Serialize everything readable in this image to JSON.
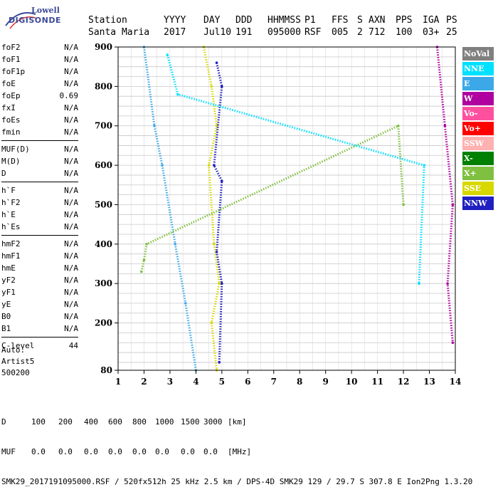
{
  "logo": {
    "line1": "Lowell",
    "line2": "DIGISONDE"
  },
  "header": {
    "labels": [
      "Station",
      "YYYY",
      "DAY",
      "DDD",
      "HHMMSS",
      "P1",
      "FFS",
      "S",
      "AXN",
      "PPS",
      "IGA",
      "PS"
    ],
    "values": [
      "Santa Maria",
      "2017",
      "Jul10",
      "191",
      "095000",
      "RSF",
      "005",
      "2",
      "712",
      "100",
      "03+",
      "25"
    ]
  },
  "params_groups": [
    [
      {
        "name": "foF2",
        "value": "N/A"
      },
      {
        "name": "foF1",
        "value": "N/A"
      },
      {
        "name": "foF1p",
        "value": "N/A"
      },
      {
        "name": "foE",
        "value": "N/A"
      },
      {
        "name": "foEp",
        "value": "0.69"
      },
      {
        "name": "fxI",
        "value": "N/A"
      },
      {
        "name": "foEs",
        "value": "N/A"
      },
      {
        "name": "fmin",
        "value": "N/A"
      }
    ],
    [
      {
        "name": "MUF(D)",
        "value": "N/A"
      },
      {
        "name": "M(D)",
        "value": "N/A"
      },
      {
        "name": "D",
        "value": "N/A"
      }
    ],
    [
      {
        "name": "h`F",
        "value": "N/A"
      },
      {
        "name": "h`F2",
        "value": "N/A"
      },
      {
        "name": "h`E",
        "value": "N/A"
      },
      {
        "name": "h`Es",
        "value": "N/A"
      }
    ],
    [
      {
        "name": "hmF2",
        "value": "N/A"
      },
      {
        "name": "hmF1",
        "value": "N/A"
      },
      {
        "name": "hmE",
        "value": "N/A"
      },
      {
        "name": "yF2",
        "value": "N/A"
      },
      {
        "name": "yF1",
        "value": "N/A"
      },
      {
        "name": "yE",
        "value": "N/A"
      },
      {
        "name": "B0",
        "value": "N/A"
      },
      {
        "name": "B1",
        "value": "N/A"
      }
    ],
    [
      {
        "name": "C-level",
        "value": "44"
      }
    ]
  ],
  "auto": {
    "line1": "Auto:",
    "line2": "Artist5",
    "line3": "500200"
  },
  "footer": {
    "d_label": "D",
    "d_values": [
      "100",
      "200",
      "400",
      "600",
      "800",
      "1000",
      "1500",
      "3000"
    ],
    "d_unit": "[km]",
    "muf_label": "MUF",
    "muf_values": [
      "0.0",
      "0.0",
      "0.0",
      "0.0",
      "0.0",
      "0.0",
      "0.0",
      "0.0"
    ],
    "muf_unit": "[MHz]",
    "info": "SMK29_2017191095000.RSF / 520fx512h 25 kHz 2.5 km / DPS-4D SMK29 129 / 29.7 S 307.8 E Ion2Png 1.3.20"
  },
  "legend": [
    {
      "label": "NoVal",
      "color": "#808080"
    },
    {
      "label": "NNE",
      "color": "#00e0ff"
    },
    {
      "label": "E",
      "color": "#3ca8e8"
    },
    {
      "label": "W",
      "color": "#b000a0"
    },
    {
      "label": "Vo-",
      "color": "#ff50a0"
    },
    {
      "label": "Vo+",
      "color": "#ff0000"
    },
    {
      "label": "SSW",
      "color": "#ffb0b0"
    },
    {
      "label": "X-",
      "color": "#008000"
    },
    {
      "label": "X+",
      "color": "#80c040"
    },
    {
      "label": "SSE",
      "color": "#d8d800"
    },
    {
      "label": "NNW",
      "color": "#2020c0"
    }
  ],
  "chart_data": {
    "type": "scatter",
    "xlabel": "",
    "ylabel": "",
    "x_ticks": [
      1,
      2,
      3,
      4,
      5,
      6,
      7,
      8,
      9,
      10,
      11,
      12,
      13,
      14
    ],
    "y_ticks": [
      80,
      200,
      300,
      400,
      500,
      600,
      700,
      800,
      900
    ],
    "xlim": [
      1,
      14
    ],
    "ylim": [
      80,
      900
    ],
    "grid": true,
    "legend_position": "right",
    "series": [
      {
        "name": "SSE",
        "color": "#d8d800",
        "points": [
          [
            4.3,
            900
          ],
          [
            4.6,
            800
          ],
          [
            4.8,
            700
          ],
          [
            4.5,
            600
          ],
          [
            4.7,
            400
          ],
          [
            4.9,
            300
          ],
          [
            4.6,
            200
          ],
          [
            4.8,
            80
          ]
        ]
      },
      {
        "name": "NNW",
        "color": "#2020c0",
        "points": [
          [
            4.8,
            860
          ],
          [
            5.0,
            800
          ],
          [
            4.7,
            600
          ],
          [
            5.0,
            560
          ],
          [
            4.8,
            380
          ],
          [
            5.0,
            300
          ],
          [
            4.9,
            100
          ]
        ]
      },
      {
        "name": "E",
        "color": "#3ca8e8",
        "points": [
          [
            2.0,
            900
          ],
          [
            2.4,
            700
          ],
          [
            2.7,
            600
          ],
          [
            3.2,
            400
          ],
          [
            3.6,
            250
          ],
          [
            4.0,
            80
          ]
        ]
      },
      {
        "name": "W",
        "color": "#b000a0",
        "points": [
          [
            13.3,
            900
          ],
          [
            13.6,
            700
          ],
          [
            13.9,
            500
          ],
          [
            13.7,
            300
          ],
          [
            13.9,
            150
          ]
        ]
      },
      {
        "name": "X+",
        "color": "#80c040",
        "points": [
          [
            1.9,
            330
          ],
          [
            2.0,
            360
          ],
          [
            2.1,
            400
          ],
          [
            11.8,
            700
          ],
          [
            12.0,
            500
          ]
        ]
      },
      {
        "name": "NNE",
        "color": "#00e0ff",
        "points": [
          [
            2.9,
            880
          ],
          [
            3.3,
            780
          ],
          [
            12.8,
            600
          ],
          [
            12.6,
            300
          ]
        ]
      }
    ]
  }
}
